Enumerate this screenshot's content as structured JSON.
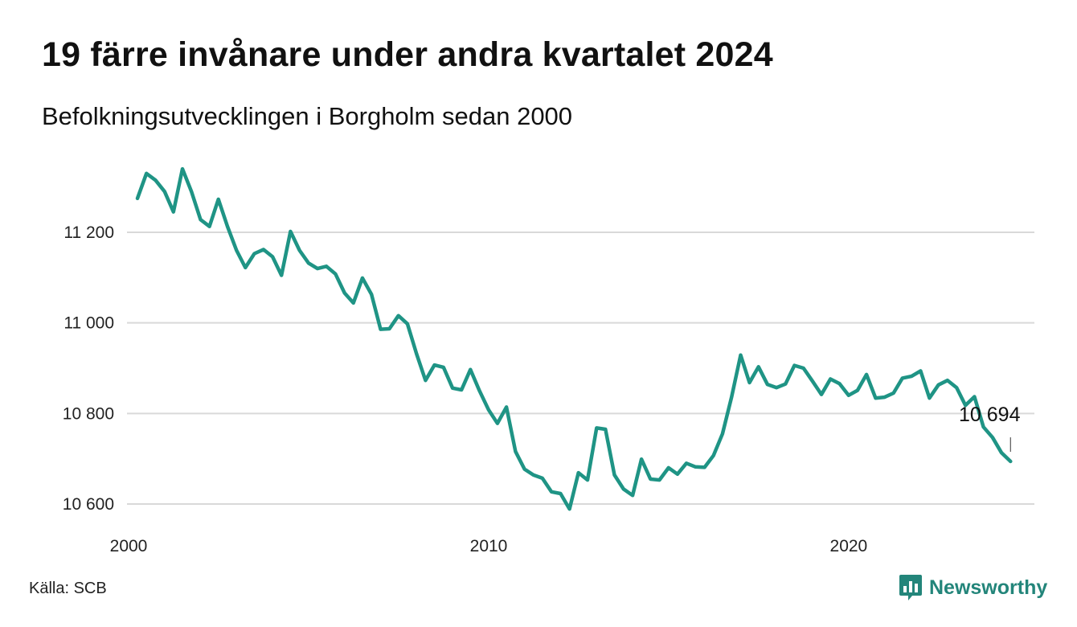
{
  "title": "19 färre invånare under andra kvartalet 2024",
  "subtitle": "Befolkningsutvecklingen i Borgholm sedan 2000",
  "source": "Källa: SCB",
  "brand": {
    "name": "Newsworthy",
    "icon": "newsworthy-logo-icon",
    "color": "#23857a"
  },
  "chart_data": {
    "type": "line",
    "line_color": "#1f9485",
    "grid": true,
    "x_domain": [
      "2000-01-01",
      "2024-06-30"
    ],
    "ylim": [
      10560,
      11360
    ],
    "y_ticks": [
      10600,
      10800,
      11000,
      11200
    ],
    "y_tick_labels": [
      "10 600",
      "10 800",
      "11 000",
      "11 200"
    ],
    "x_ticks": [
      "2000-01-01",
      "2010-01-01",
      "2020-01-01"
    ],
    "x_tick_labels": [
      "2000",
      "2010",
      "2020"
    ],
    "end_label": "10 694",
    "series": [
      {
        "x": [
          "2000-03-31",
          "2000-06-30",
          "2000-09-30",
          "2000-12-31",
          "2001-03-31",
          "2001-06-30",
          "2001-09-30",
          "2001-12-31",
          "2002-03-31",
          "2002-06-30",
          "2002-09-30",
          "2002-12-31",
          "2003-03-31",
          "2003-06-30",
          "2003-09-30",
          "2003-12-31",
          "2004-03-31",
          "2004-06-30",
          "2004-09-30",
          "2004-12-31",
          "2005-03-31",
          "2005-06-30",
          "2005-09-30",
          "2005-12-31",
          "2006-03-31",
          "2006-06-30",
          "2006-09-30",
          "2006-12-31",
          "2007-03-31",
          "2007-06-30",
          "2007-09-30",
          "2007-12-31",
          "2008-03-31",
          "2008-06-30",
          "2008-09-30",
          "2008-12-31",
          "2009-03-31",
          "2009-06-30",
          "2009-09-30",
          "2009-12-31",
          "2010-03-31",
          "2010-06-30",
          "2010-09-30",
          "2010-12-31",
          "2011-03-31",
          "2011-06-30",
          "2011-09-30",
          "2011-12-31",
          "2012-03-31",
          "2012-06-30",
          "2012-09-30",
          "2012-12-31",
          "2013-03-31",
          "2013-06-30",
          "2013-09-30",
          "2013-12-31",
          "2014-03-31",
          "2014-06-30",
          "2014-09-30",
          "2014-12-31",
          "2015-03-31",
          "2015-06-30",
          "2015-09-30",
          "2015-12-31",
          "2016-03-31",
          "2016-06-30",
          "2016-09-30",
          "2016-12-31",
          "2017-03-31",
          "2017-06-30",
          "2017-09-30",
          "2017-12-31",
          "2018-03-31",
          "2018-06-30",
          "2018-09-30",
          "2018-12-31",
          "2019-03-31",
          "2019-06-30",
          "2019-09-30",
          "2019-12-31",
          "2020-03-31",
          "2020-06-30",
          "2020-09-30",
          "2020-12-31",
          "2021-03-31",
          "2021-06-30",
          "2021-09-30",
          "2021-12-31",
          "2022-03-31",
          "2022-06-30",
          "2022-09-30",
          "2022-12-31",
          "2023-03-31",
          "2023-06-30",
          "2023-09-30",
          "2023-12-31",
          "2024-03-31",
          "2024-06-30"
        ],
        "y": [
          11275,
          11330,
          11315,
          11290,
          11245,
          11340,
          11290,
          11228,
          11213,
          11273,
          11213,
          11160,
          11122,
          11153,
          11162,
          11146,
          11105,
          11202,
          11160,
          11132,
          11120,
          11125,
          11108,
          11066,
          11044,
          11099,
          11063,
          10986,
          10987,
          11016,
          10998,
          10932,
          10873,
          10907,
          10902,
          10856,
          10852,
          10897,
          10850,
          10808,
          10778,
          10814,
          10716,
          10677,
          10664,
          10657,
          10627,
          10623,
          10589,
          10669,
          10653,
          10768,
          10765,
          10664,
          10633,
          10619,
          10699,
          10655,
          10653,
          10680,
          10666,
          10690,
          10682,
          10681,
          10707,
          10755,
          10836,
          10929,
          10868,
          10903,
          10864,
          10857,
          10865,
          10906,
          10900,
          10871,
          10842,
          10876,
          10866,
          10840,
          10851,
          10886,
          10834,
          10836,
          10845,
          10878,
          10882,
          10894,
          10834,
          10863,
          10873,
          10857,
          10818,
          10837,
          10770,
          10747,
          10713,
          10694
        ]
      }
    ]
  }
}
